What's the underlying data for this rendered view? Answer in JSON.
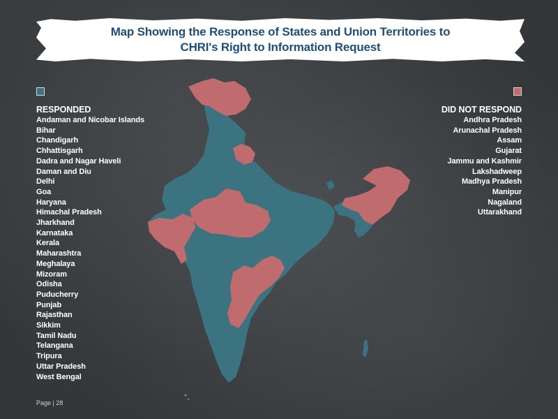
{
  "title": "Map Showing the Response of States and Union Territories to CHRI's Right to Information Request",
  "colors": {
    "responded": "#3b7480",
    "did_not_respond": "#c06b6e"
  },
  "responded": {
    "heading": "RESPONDED",
    "items": [
      "Andaman and Nicobar Islands",
      "Bihar",
      "Chandigarh",
      "Chhattisgarh",
      "Dadra and Nagar Haveli",
      "Daman and Diu",
      "Delhi",
      "Goa",
      "Haryana",
      "Himachal Pradesh",
      "Jharkhand",
      "Karnataka",
      "Kerala",
      "Maharashtra",
      "Meghalaya",
      "Mizoram",
      "Odisha",
      "Puducherry",
      "Punjab",
      "Rajasthan",
      "Sikkim",
      "Tamil Nadu",
      "Telangana",
      "Tripura",
      "Uttar Pradesh",
      "West Bengal"
    ]
  },
  "did_not_respond": {
    "heading": "DID NOT RESPOND",
    "items": [
      "Andhra Pradesh",
      "Arunachal Pradesh",
      "Assam",
      "Gujarat",
      "Jammu and Kashmir",
      "Lakshadweep",
      "Madhya Pradesh",
      "Manipur",
      "Nagaland",
      "Uttarakhand"
    ]
  },
  "page": "Page | 28"
}
